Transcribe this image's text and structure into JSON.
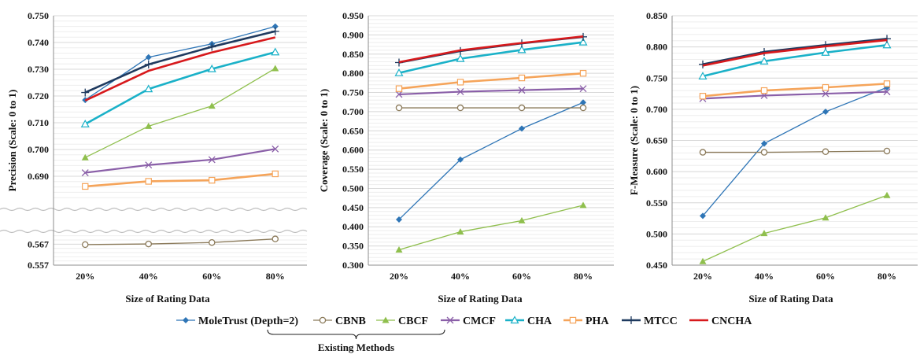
{
  "legend": {
    "group_label": "Existing Methods"
  },
  "series_styles": [
    {
      "name": "MoleTrust (Depth=2)",
      "color": "#2e75b6",
      "marker": "diamond",
      "width": 1.3
    },
    {
      "name": "CBNB",
      "color": "#8b7a5a",
      "marker": "circle",
      "width": 1.3
    },
    {
      "name": "CBCF",
      "color": "#8fbf4d",
      "marker": "triangle",
      "width": 1.3
    },
    {
      "name": "CMCF",
      "color": "#8a5fa8",
      "marker": "x",
      "width": 2.2
    },
    {
      "name": "CHA",
      "color": "#1ab1c8",
      "marker": "tri-open",
      "width": 2.6
    },
    {
      "name": "PHA",
      "color": "#f5a45a",
      "marker": "square-open",
      "width": 2.6
    },
    {
      "name": "MTCC",
      "color": "#1f3a5f",
      "marker": "plus",
      "width": 2.6
    },
    {
      "name": "CNCHA",
      "color": "#d7191c",
      "marker": "none",
      "width": 2.6
    }
  ],
  "chart_data": [
    {
      "type": "line",
      "categories": [
        "20%",
        "40%",
        "60%",
        "80%"
      ],
      "xlabel": "Size of Rating Data",
      "ylabel": "Precision  (Scale: 0 to 1)",
      "broken_axis": true,
      "upper_range": [
        0.68,
        0.75
      ],
      "upper_ticks": [
        "0.690",
        "0.700",
        "0.710",
        "0.720",
        "0.730",
        "0.740",
        "0.750"
      ],
      "lower_range": [
        0.557,
        0.572
      ],
      "lower_ticks": [
        "0.557",
        "0.567"
      ],
      "series": [
        {
          "name": "MoleTrust (Depth=2)",
          "values": [
            0.7185,
            0.7345,
            0.7395,
            0.746
          ]
        },
        {
          "name": "CBNB",
          "values": [
            0.5668,
            0.5671,
            0.5678,
            0.5695
          ]
        },
        {
          "name": "CBCF",
          "values": [
            0.697,
            0.7087,
            0.7163,
            0.7303
          ]
        },
        {
          "name": "CMCF",
          "values": [
            0.6913,
            0.6942,
            0.6962,
            0.7002
          ]
        },
        {
          "name": "CHA",
          "values": [
            0.7095,
            0.7226,
            0.7301,
            0.7364
          ]
        },
        {
          "name": "PHA",
          "values": [
            0.6862,
            0.6881,
            0.6885,
            0.6909
          ]
        },
        {
          "name": "MTCC",
          "values": [
            0.7213,
            0.7318,
            0.7384,
            0.7442
          ]
        },
        {
          "name": "CNCHA",
          "values": [
            0.7183,
            0.7294,
            0.7363,
            0.7419
          ]
        }
      ]
    },
    {
      "type": "line",
      "categories": [
        "20%",
        "40%",
        "60%",
        "80%"
      ],
      "xlabel": "Size of Rating Data",
      "ylabel": "Coverage  (Scale: 0 to 1)",
      "ylim": [
        0.3,
        0.95
      ],
      "ticks": [
        "0.300",
        "0.350",
        "0.400",
        "0.450",
        "0.500",
        "0.550",
        "0.600",
        "0.650",
        "0.700",
        "0.750",
        "0.800",
        "0.850",
        "0.900",
        "0.950"
      ],
      "series": [
        {
          "name": "MoleTrust (Depth=2)",
          "values": [
            0.419,
            0.575,
            0.656,
            0.724
          ]
        },
        {
          "name": "CBNB",
          "values": [
            0.71,
            0.71,
            0.71,
            0.71
          ]
        },
        {
          "name": "CBCF",
          "values": [
            0.34,
            0.387,
            0.416,
            0.456
          ]
        },
        {
          "name": "CMCF",
          "values": [
            0.745,
            0.752,
            0.756,
            0.76
          ]
        },
        {
          "name": "CHA",
          "values": [
            0.801,
            0.838,
            0.861,
            0.881
          ]
        },
        {
          "name": "PHA",
          "values": [
            0.76,
            0.777,
            0.788,
            0.8
          ]
        },
        {
          "name": "MTCC",
          "values": [
            0.828,
            0.858,
            0.878,
            0.895
          ]
        },
        {
          "name": "CNCHA",
          "values": [
            0.829,
            0.86,
            0.879,
            0.896
          ]
        }
      ]
    },
    {
      "type": "line",
      "categories": [
        "20%",
        "40%",
        "60%",
        "80%"
      ],
      "xlabel": "Size of Rating Data",
      "ylabel": "F-Measure  (Scale: 0 to 1)",
      "ylim": [
        0.45,
        0.85
      ],
      "ticks": [
        "0.450",
        "0.500",
        "0.550",
        "0.600",
        "0.650",
        "0.700",
        "0.750",
        "0.800",
        "0.850"
      ],
      "series": [
        {
          "name": "MoleTrust (Depth=2)",
          "values": [
            0.529,
            0.645,
            0.696,
            0.735
          ]
        },
        {
          "name": "CBNB",
          "values": [
            0.631,
            0.631,
            0.632,
            0.633
          ]
        },
        {
          "name": "CBCF",
          "values": [
            0.456,
            0.501,
            0.526,
            0.562
          ]
        },
        {
          "name": "CMCF",
          "values": [
            0.717,
            0.722,
            0.725,
            0.728
          ]
        },
        {
          "name": "CHA",
          "values": [
            0.753,
            0.777,
            0.791,
            0.803
          ]
        },
        {
          "name": "PHA",
          "values": [
            0.721,
            0.73,
            0.735,
            0.741
          ]
        },
        {
          "name": "MTCC",
          "values": [
            0.772,
            0.792,
            0.803,
            0.813
          ]
        },
        {
          "name": "CNCHA",
          "values": [
            0.77,
            0.79,
            0.801,
            0.811
          ]
        }
      ]
    }
  ]
}
